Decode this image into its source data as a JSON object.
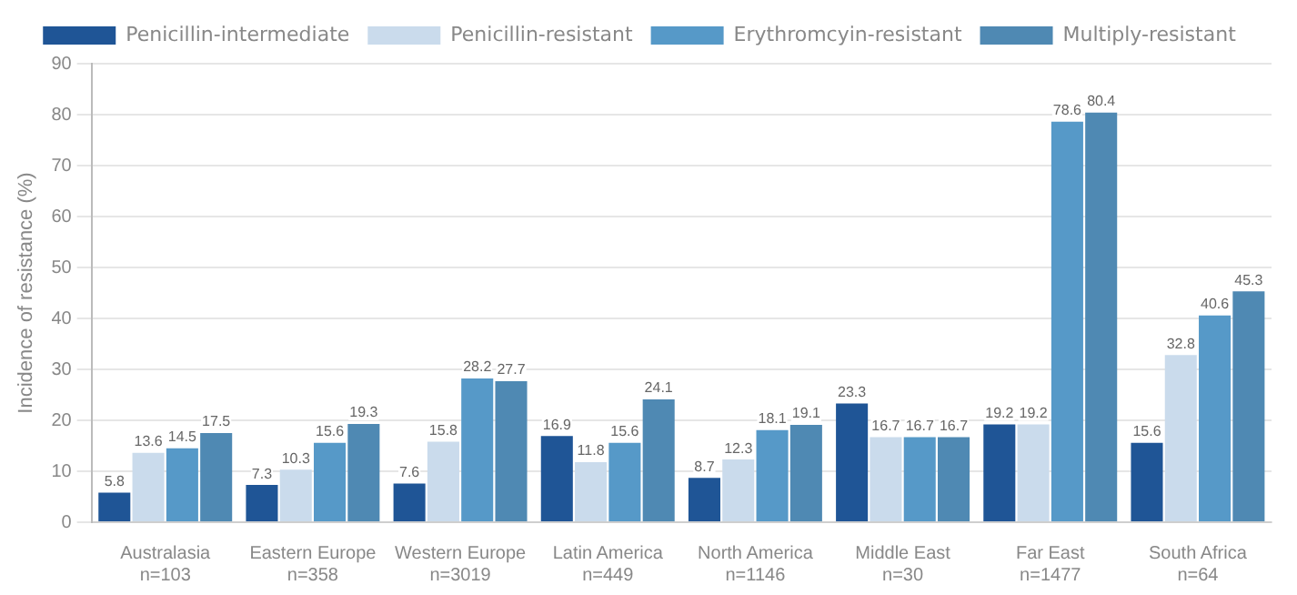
{
  "chart_data": {
    "type": "bar",
    "ylabel": "Incidence of resistance (%)",
    "categories": [
      "Australasia\nn=103",
      "Eastern Europe\nn=358",
      "Western Europe\nn=3019",
      "Latin America\nn=449",
      "North America\nn=1146",
      "Middle East\nn=30",
      "Far East\nn=1477",
      "South Africa\nn=64"
    ],
    "series": [
      {
        "name": "Penicillin-intermediate",
        "color": "#1f5596",
        "values": [
          5.8,
          7.3,
          7.6,
          16.9,
          8.7,
          23.3,
          19.2,
          15.6
        ]
      },
      {
        "name": "Penicillin-resistant",
        "color": "#cadbec",
        "values": [
          13.6,
          10.3,
          15.8,
          11.8,
          12.3,
          16.7,
          19.2,
          32.8
        ]
      },
      {
        "name": "Erythromcyin-resistant",
        "color": "#5699c8",
        "values": [
          14.5,
          15.6,
          28.2,
          15.6,
          18.1,
          16.7,
          78.6,
          40.6
        ]
      },
      {
        "name": "Multiply-resistant",
        "color": "#4f89b3",
        "values": [
          17.5,
          19.3,
          27.7,
          24.1,
          19.1,
          16.7,
          80.4,
          45.3
        ]
      }
    ],
    "ylim": [
      0,
      90
    ],
    "yticks": [
      0,
      10,
      20,
      30,
      40,
      50,
      60,
      70,
      80,
      90
    ],
    "grid": "y",
    "legend": "top",
    "data_labels": true
  }
}
